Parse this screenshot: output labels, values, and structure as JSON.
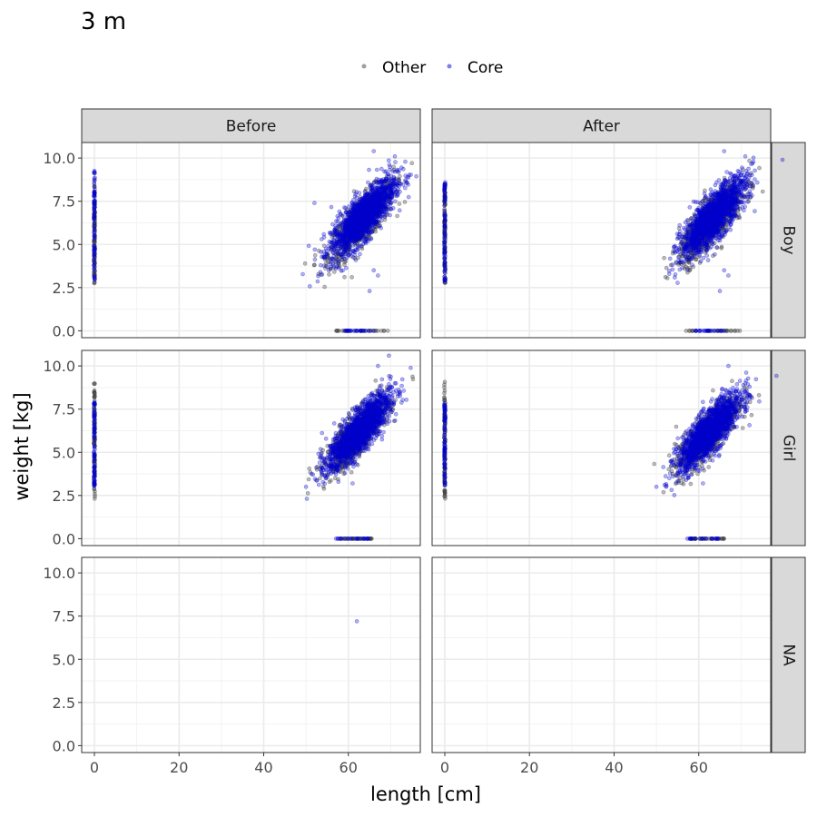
{
  "chart_data": {
    "type": "scatter",
    "title": "3 m",
    "xlabel": "length [cm]",
    "ylabel": "weight [kg]",
    "xlim": [
      -3,
      77
    ],
    "ylim": [
      -0.4,
      10.9
    ],
    "x_ticks": [
      0,
      20,
      40,
      60
    ],
    "x_tick_labels": [
      "0",
      "20",
      "40",
      "60"
    ],
    "y_ticks": [
      0,
      2.5,
      5,
      7.5,
      10
    ],
    "y_tick_labels": [
      "0.0",
      "2.5",
      "5.0",
      "7.5",
      "10.0"
    ],
    "grid": true,
    "legend": {
      "position": "top",
      "entries": [
        {
          "label": "Other",
          "color": "#404040"
        },
        {
          "label": "Core",
          "color": "#0000cc"
        }
      ]
    },
    "facet_columns": [
      "Before",
      "After"
    ],
    "facet_rows": [
      "Boy",
      "Girl",
      "NA"
    ],
    "panels": [
      {
        "column": "Before",
        "row": "Boy",
        "clusters": [
          {
            "series": "Other",
            "kind": "vertical_line",
            "x": 0,
            "y_range": [
              2.7,
              8.5
            ]
          },
          {
            "series": "Core",
            "kind": "vertical_line",
            "x": 0,
            "y_range": [
              2.8,
              9.3
            ]
          },
          {
            "series": "Other",
            "kind": "ellipse",
            "center": [
              63,
              6.3
            ],
            "x_spread": 3.8,
            "y_spread": 0.95,
            "slope": 0.24
          },
          {
            "series": "Core",
            "kind": "ellipse",
            "center": [
              63.5,
              6.6
            ],
            "x_spread": 3.8,
            "y_spread": 0.95,
            "slope": 0.24
          },
          {
            "series": "Other",
            "kind": "horizontal_line",
            "y": 0,
            "x_range": [
              57,
              70
            ]
          },
          {
            "series": "Core",
            "kind": "horizontal_line",
            "y": 0,
            "x_range": [
              59,
              66
            ]
          }
        ],
        "outliers": [
          {
            "series": "Core",
            "x": 65,
            "y": 2.3
          },
          {
            "series": "Core",
            "x": 67,
            "y": 3.2
          },
          {
            "series": "Core",
            "x": 66,
            "y": 3.5
          },
          {
            "series": "Core",
            "x": 52,
            "y": 7.4
          },
          {
            "series": "Core",
            "x": 71,
            "y": 10.1
          },
          {
            "series": "Core",
            "x": 66,
            "y": 10.4
          }
        ]
      },
      {
        "column": "After",
        "row": "Boy",
        "clusters": [
          {
            "series": "Other",
            "kind": "vertical_line",
            "x": 0,
            "y_range": [
              2.7,
              8.5
            ]
          },
          {
            "series": "Core",
            "kind": "vertical_line",
            "x": 0,
            "y_range": [
              2.8,
              8.6
            ]
          },
          {
            "series": "Other",
            "kind": "ellipse",
            "center": [
              63,
              6.3
            ],
            "x_spread": 3.8,
            "y_spread": 0.95,
            "slope": 0.24
          },
          {
            "series": "Core",
            "kind": "ellipse",
            "center": [
              63.5,
              6.6
            ],
            "x_spread": 3.8,
            "y_spread": 0.95,
            "slope": 0.24
          },
          {
            "series": "Other",
            "kind": "horizontal_line",
            "y": 0,
            "x_range": [
              57,
              70
            ]
          },
          {
            "series": "Core",
            "kind": "horizontal_line",
            "y": 0,
            "x_range": [
              59,
              66
            ]
          }
        ],
        "outliers": [
          {
            "series": "Core",
            "x": 65,
            "y": 2.3
          },
          {
            "series": "Core",
            "x": 67,
            "y": 3.2
          },
          {
            "series": "Core",
            "x": 66,
            "y": 3.5
          },
          {
            "series": "Core",
            "x": 71,
            "y": 10.1
          },
          {
            "series": "Core",
            "x": 66,
            "y": 10.4
          }
        ]
      },
      {
        "column": "Before",
        "row": "Girl",
        "clusters": [
          {
            "series": "Other",
            "kind": "vertical_line",
            "x": 0,
            "y_range": [
              2.3,
              9.1
            ]
          },
          {
            "series": "Core",
            "kind": "vertical_line",
            "x": 0,
            "y_range": [
              3.0,
              7.9
            ]
          },
          {
            "series": "Other",
            "kind": "ellipse",
            "center": [
              62,
              6.0
            ],
            "x_spread": 3.7,
            "y_spread": 0.9,
            "slope": 0.24
          },
          {
            "series": "Core",
            "kind": "ellipse",
            "center": [
              62.5,
              6.2
            ],
            "x_spread": 3.7,
            "y_spread": 0.9,
            "slope": 0.24
          },
          {
            "series": "Other",
            "kind": "horizontal_line",
            "y": 0,
            "x_range": [
              58,
              66
            ]
          },
          {
            "series": "Core",
            "kind": "horizontal_line",
            "y": 0,
            "x_range": [
              57,
              65
            ]
          }
        ],
        "outliers": [
          {
            "series": "Core",
            "x": 61,
            "y": 3.2
          },
          {
            "series": "Core",
            "x": 71,
            "y": 9.0
          },
          {
            "series": "Core",
            "x": 67,
            "y": 10.0
          },
          {
            "series": "Core",
            "x": 50,
            "y": 3.0
          }
        ]
      },
      {
        "column": "After",
        "row": "Girl",
        "clusters": [
          {
            "series": "Other",
            "kind": "vertical_line",
            "x": 0,
            "y_range": [
              2.3,
              9.1
            ]
          },
          {
            "series": "Core",
            "kind": "vertical_line",
            "x": 0,
            "y_range": [
              3.0,
              7.9
            ]
          },
          {
            "series": "Other",
            "kind": "ellipse",
            "center": [
              62,
              6.0
            ],
            "x_spread": 3.7,
            "y_spread": 0.9,
            "slope": 0.24
          },
          {
            "series": "Core",
            "kind": "ellipse",
            "center": [
              62.5,
              6.2
            ],
            "x_spread": 3.7,
            "y_spread": 0.9,
            "slope": 0.24
          },
          {
            "series": "Other",
            "kind": "horizontal_line",
            "y": 0,
            "x_range": [
              58,
              66
            ]
          },
          {
            "series": "Core",
            "kind": "horizontal_line",
            "y": 0,
            "x_range": [
              57,
              65
            ]
          }
        ],
        "outliers": [
          {
            "series": "Core",
            "x": 61,
            "y": 3.2
          },
          {
            "series": "Core",
            "x": 71,
            "y": 9.0
          },
          {
            "series": "Core",
            "x": 67,
            "y": 10.0
          },
          {
            "series": "Core",
            "x": 50,
            "y": 3.0
          }
        ]
      },
      {
        "column": "Before",
        "row": "NA",
        "clusters": [],
        "outliers": [
          {
            "series": "Core",
            "x": 62,
            "y": 7.2
          }
        ]
      },
      {
        "column": "After",
        "row": "NA",
        "clusters": [],
        "outliers": []
      }
    ]
  }
}
